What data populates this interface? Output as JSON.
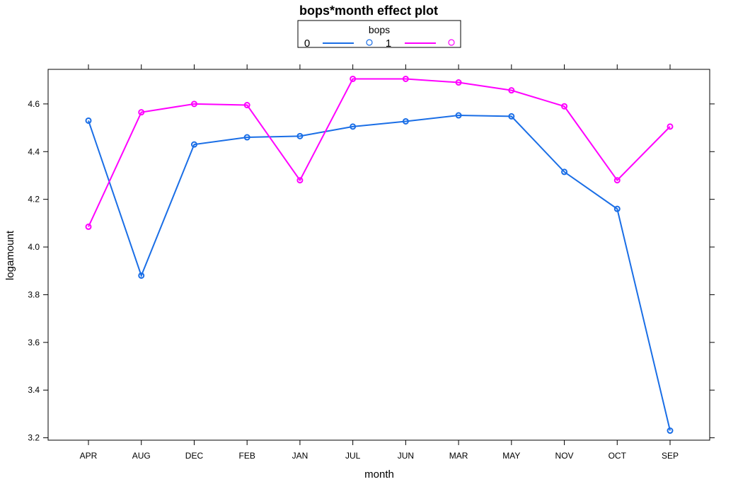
{
  "chart_data": {
    "type": "line",
    "title": "bops*month effect plot",
    "xlabel": "month",
    "ylabel": "logamount",
    "categories": [
      "APR",
      "AUG",
      "DEC",
      "FEB",
      "JAN",
      "JUL",
      "JUN",
      "MAR",
      "MAY",
      "NOV",
      "OCT",
      "SEP"
    ],
    "ylim": [
      3.19,
      4.745
    ],
    "yticks": [
      3.2,
      3.4,
      3.6,
      3.8,
      4.0,
      4.2,
      4.4,
      4.6
    ],
    "ytick_labels": [
      "3.2",
      "3.4",
      "3.6",
      "3.8",
      "4.0",
      "4.2",
      "4.4",
      "4.6"
    ],
    "grid": false,
    "legend": {
      "title": "bops",
      "placement": "top"
    },
    "series": [
      {
        "name": "0",
        "color": "#1a6ee6",
        "marker": "open-circle",
        "values": [
          4.53,
          3.88,
          4.43,
          4.46,
          4.465,
          4.505,
          4.527,
          4.552,
          4.548,
          4.315,
          4.16,
          3.23
        ]
      },
      {
        "name": "1",
        "color": "#ff00ff",
        "marker": "open-circle",
        "values": [
          4.085,
          4.565,
          4.6,
          4.595,
          4.28,
          4.705,
          4.705,
          4.69,
          4.657,
          4.59,
          4.28,
          4.505
        ]
      }
    ]
  }
}
